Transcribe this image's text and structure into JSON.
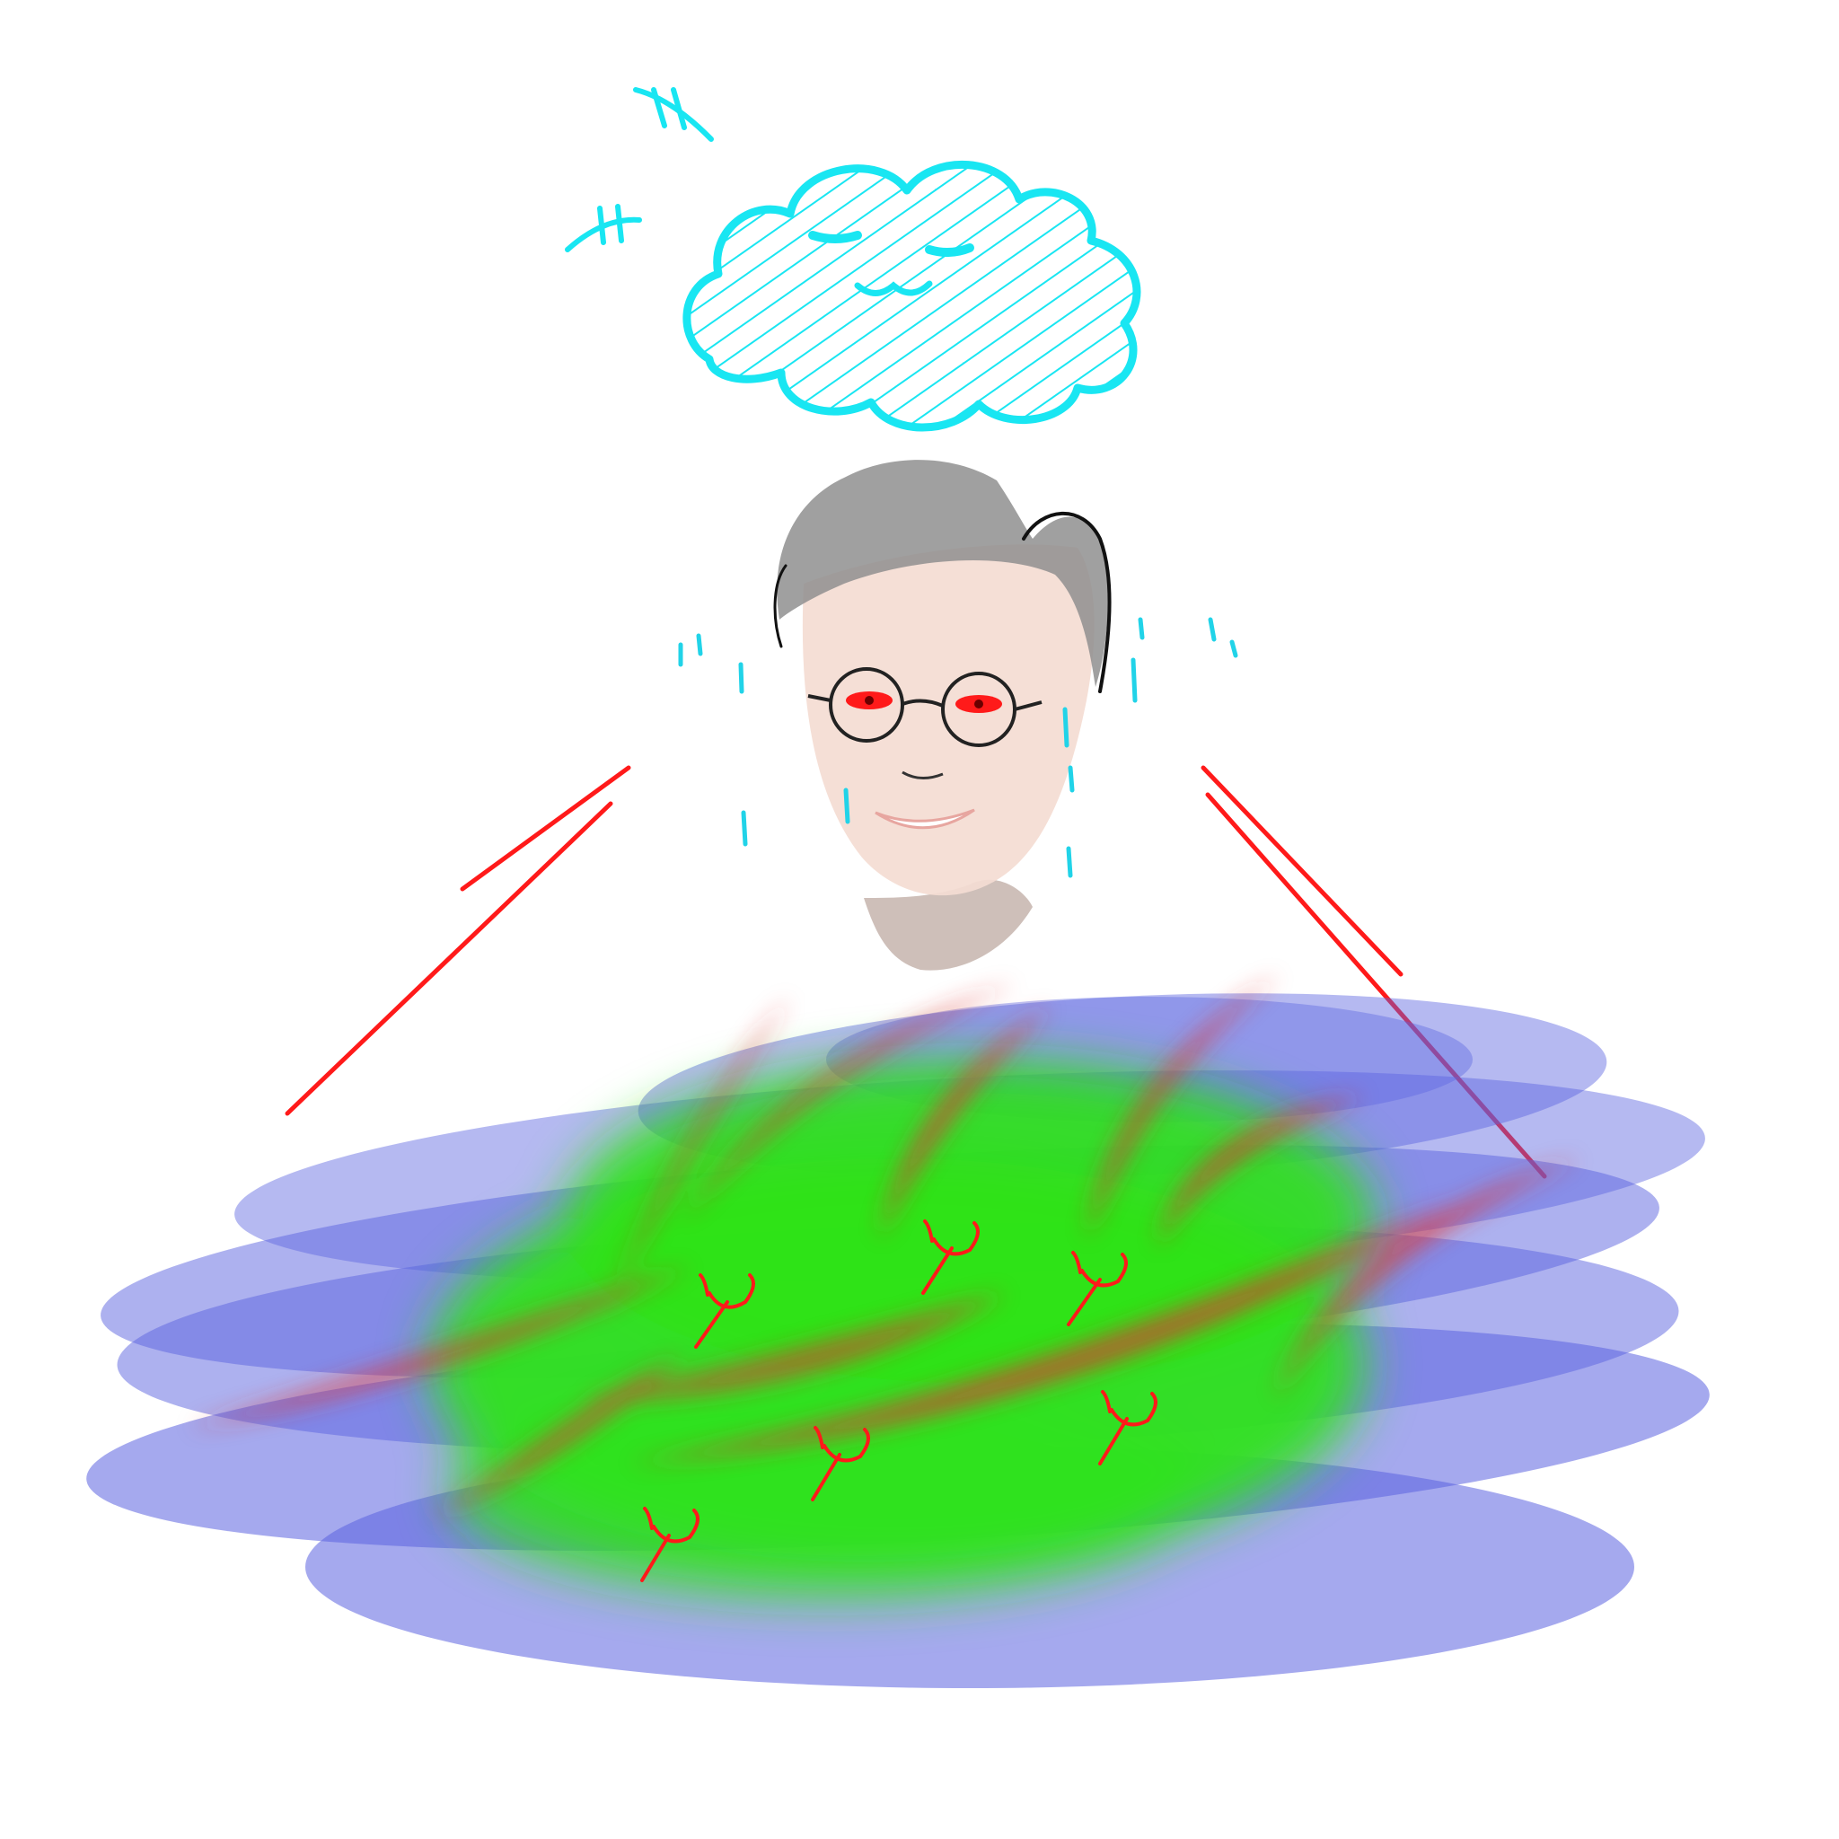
{
  "canvas": {
    "background": "#ffffff"
  },
  "palette": {
    "cloud": "#19e6f2",
    "rain_drop": "#21d3e8",
    "red_accent": "#ff1a1a",
    "glasses_frame": "#222222",
    "hair": "#8f8f8f",
    "skin": "#f4dcd2",
    "neck": "#c9b8b1",
    "pool_blue": "#5b63e0",
    "pool_green": "#2ee31a",
    "flame_red": "#e03434"
  },
  "icons": {
    "cloud": "cloud-with-face-icon",
    "face": "sweating-face-icon",
    "pool": "colorful-puddle-icon"
  }
}
